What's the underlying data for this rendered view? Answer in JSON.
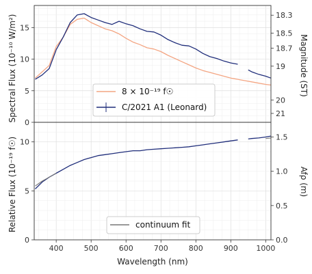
{
  "chart_data": [
    {
      "type": "line",
      "panel": "top",
      "ylabel": "Spectral Flux (10⁻¹⁰ W/m²)",
      "ylabel_right": "Magnitude (ST)",
      "xlim": [
        337,
        1015
      ],
      "ylim": [
        0,
        18.5
      ],
      "yticks": [
        0,
        5,
        10,
        15
      ],
      "right_ticks": [
        "18.3",
        "18.5",
        "18.7",
        "19",
        "20",
        "21"
      ],
      "right_tick_flux": [
        16.96,
        14.11,
        11.73,
        8.89,
        3.54,
        1.41
      ],
      "grid": true,
      "legend_position": "center-right",
      "series": [
        {
          "name": "8 × 10⁻¹⁹ f☉",
          "color": "#f4a582",
          "x": [
            340,
            360,
            380,
            400,
            420,
            440,
            460,
            480,
            500,
            520,
            540,
            560,
            580,
            600,
            620,
            640,
            660,
            680,
            700,
            720,
            740,
            760,
            780,
            800,
            820,
            840,
            860,
            880,
            900,
            920,
            940,
            960,
            980,
            1000,
            1015
          ],
          "values": [
            7.0,
            8.0,
            9.0,
            12.0,
            13.5,
            15.5,
            16.3,
            16.5,
            15.8,
            15.3,
            14.8,
            14.5,
            14.0,
            13.3,
            12.7,
            12.3,
            11.8,
            11.6,
            11.2,
            10.6,
            10.1,
            9.6,
            9.1,
            8.6,
            8.2,
            7.9,
            7.6,
            7.3,
            7.0,
            6.8,
            6.6,
            6.4,
            6.2,
            6.0,
            5.9
          ]
        },
        {
          "name": "C/2021 A1 (Leonard)",
          "color": "#1f2d7a",
          "x": [
            340,
            360,
            380,
            400,
            420,
            440,
            460,
            480,
            500,
            520,
            540,
            560,
            580,
            600,
            620,
            640,
            660,
            680,
            700,
            720,
            740,
            760,
            780,
            800,
            820,
            840,
            860,
            880,
            900,
            920,
            950,
            960,
            980,
            1000,
            1015
          ],
          "values": [
            6.8,
            7.5,
            8.5,
            11.5,
            13.5,
            15.8,
            17.0,
            17.2,
            16.6,
            16.2,
            15.8,
            15.5,
            16.0,
            15.6,
            15.3,
            14.8,
            14.4,
            14.3,
            13.8,
            13.1,
            12.6,
            12.2,
            12.1,
            11.6,
            10.9,
            10.4,
            10.1,
            9.7,
            9.4,
            9.2,
            8.3,
            8.0,
            7.6,
            7.3,
            7.0
          ]
        }
      ]
    },
    {
      "type": "line",
      "panel": "bottom",
      "xlabel": "Wavelength (nm)",
      "ylabel": "Relative Flux (10⁻¹⁹ f☉)",
      "ylabel_right": "Afρ (m)",
      "xlim": [
        337,
        1015
      ],
      "ylim": [
        0,
        12
      ],
      "yticks": [
        0,
        5,
        10
      ],
      "xticks": [
        400,
        500,
        600,
        700,
        800,
        900,
        1000
      ],
      "right_ticks": [
        "0.0",
        "0.5",
        "1.0",
        "1.5"
      ],
      "right_tick_rel": [
        0,
        3.5,
        7.0,
        10.5
      ],
      "grid": true,
      "legend_position": "bottom-center",
      "series": [
        {
          "name": "C/2021 A1 (Leonard)",
          "color": "#1f2d7a",
          "x": [
            340,
            360,
            380,
            400,
            420,
            440,
            460,
            480,
            500,
            520,
            540,
            560,
            580,
            600,
            620,
            640,
            660,
            680,
            700,
            720,
            740,
            760,
            780,
            800,
            820,
            840,
            860,
            880,
            900,
            920,
            950,
            960,
            980,
            1000,
            1015
          ],
          "values": [
            5.2,
            5.9,
            6.4,
            6.8,
            7.2,
            7.6,
            7.9,
            8.2,
            8.4,
            8.6,
            8.7,
            8.8,
            8.9,
            9.0,
            9.1,
            9.1,
            9.2,
            9.25,
            9.3,
            9.35,
            9.4,
            9.45,
            9.5,
            9.6,
            9.7,
            9.8,
            9.9,
            10.0,
            10.1,
            10.2,
            10.3,
            10.35,
            10.4,
            10.5,
            10.6
          ]
        },
        {
          "name": "continuum fit",
          "color": "#777777",
          "x": [
            340,
            360,
            380,
            400,
            440,
            480,
            520,
            560,
            600,
            650,
            700,
            750,
            800,
            850,
            900,
            950,
            1000,
            1015
          ],
          "values": [
            5.5,
            6.0,
            6.4,
            6.8,
            7.5,
            8.0,
            8.4,
            8.7,
            8.95,
            9.15,
            9.3,
            9.45,
            9.6,
            9.75,
            9.95,
            10.15,
            10.35,
            10.4
          ]
        }
      ]
    }
  ]
}
